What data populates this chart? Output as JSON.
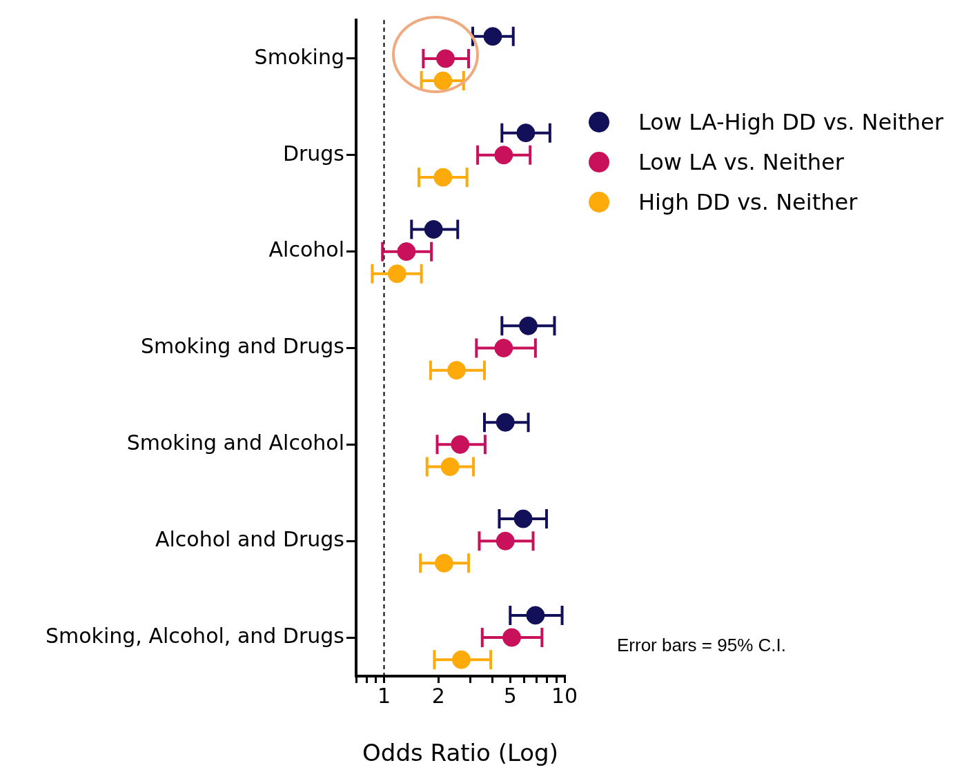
{
  "chart_data": {
    "type": "scatter",
    "orientation": "horizontal",
    "xlabel": "Odds Ratio (Log)",
    "categories": [
      "Smoking",
      "Drugs",
      "Alcohol",
      "Smoking and Drugs",
      "Smoking and Alcohol",
      "Alcohol and Drugs",
      "Smoking, Alcohol, and Drugs"
    ],
    "series": [
      {
        "name": "Low LA-High DD vs. Neither",
        "color": "#13105a",
        "values": [
          4.0,
          6.1,
          1.88,
          6.3,
          4.7,
          5.9,
          6.9
        ],
        "errors": [
          [
            3.1,
            5.2
          ],
          [
            4.5,
            8.3
          ],
          [
            1.42,
            2.56
          ],
          [
            4.5,
            8.8
          ],
          [
            3.6,
            6.3
          ],
          [
            4.35,
            7.95
          ],
          [
            5.0,
            9.7
          ]
        ]
      },
      {
        "name": "Low LA vs. Neither",
        "color": "#c8115a",
        "values": [
          2.19,
          4.6,
          1.33,
          4.6,
          2.64,
          4.7,
          5.1
        ],
        "errors": [
          [
            1.65,
            2.94
          ],
          [
            3.3,
            6.45
          ],
          [
            0.98,
            1.83
          ],
          [
            3.25,
            6.9
          ],
          [
            1.97,
            3.63
          ],
          [
            3.37,
            6.7
          ],
          [
            3.5,
            7.5
          ]
        ]
      },
      {
        "name": "High DD vs. Neither",
        "color": "#fdaa0a",
        "values": [
          2.12,
          2.12,
          1.18,
          2.52,
          2.32,
          2.15,
          2.68
        ],
        "errors": [
          [
            1.61,
            2.76
          ],
          [
            1.56,
            2.88
          ],
          [
            0.86,
            1.61
          ],
          [
            1.81,
            3.6
          ],
          [
            1.73,
            3.13
          ],
          [
            1.59,
            2.94
          ],
          [
            1.9,
            3.9
          ]
        ]
      }
    ],
    "log": "x",
    "xlim": [
      0.7,
      10
    ],
    "xticks": [
      {
        "value": 0.7,
        "label": null
      },
      {
        "value": 0.8,
        "label": null
      },
      {
        "value": 0.9,
        "label": null
      },
      1,
      2,
      {
        "value": 3,
        "label": null
      },
      {
        "value": 4,
        "label": null
      },
      5,
      {
        "value": 6,
        "label": null
      },
      {
        "value": 7,
        "label": null
      },
      {
        "value": 8,
        "label": null
      },
      {
        "value": 9,
        "label": null
      },
      10
    ],
    "ref_lines": [
      {
        "axis": "x",
        "value": 1,
        "line_style": "dashed",
        "color": "#000000"
      }
    ],
    "annotations": [
      "Error bars = 95% C.I."
    ],
    "legend": "right",
    "marker": "circle",
    "grid": false
  }
}
